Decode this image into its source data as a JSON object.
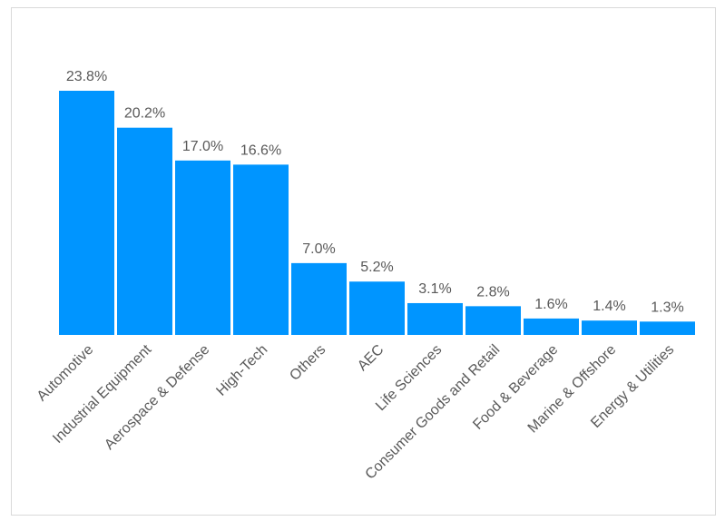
{
  "chart_data": {
    "type": "bar",
    "title": "",
    "xlabel": "",
    "ylabel": "",
    "categories": [
      "Automotive",
      "Industrial Equipment",
      "Aerospace & Defense",
      "High-Tech",
      "Others",
      "AEC",
      "Life Sciences",
      "Consumer Goods and Retail",
      "Food & Beverage",
      "Marine & Offshore",
      "Energy & Utilities"
    ],
    "values": [
      23.8,
      20.2,
      17.0,
      16.6,
      7.0,
      5.2,
      3.1,
      2.8,
      1.6,
      1.4,
      1.3
    ],
    "data_labels": [
      "23.8%",
      "20.2%",
      "17.0%",
      "16.6%",
      "7.0%",
      "5.2%",
      "3.1%",
      "2.8%",
      "1.6%",
      "1.4%",
      "1.3%"
    ],
    "ylim": [
      0,
      23.8
    ],
    "grid": false,
    "legend": "none",
    "colors": {
      "bar": "#0095FF",
      "text": "#595959",
      "frame": "#D9D9D9"
    }
  }
}
